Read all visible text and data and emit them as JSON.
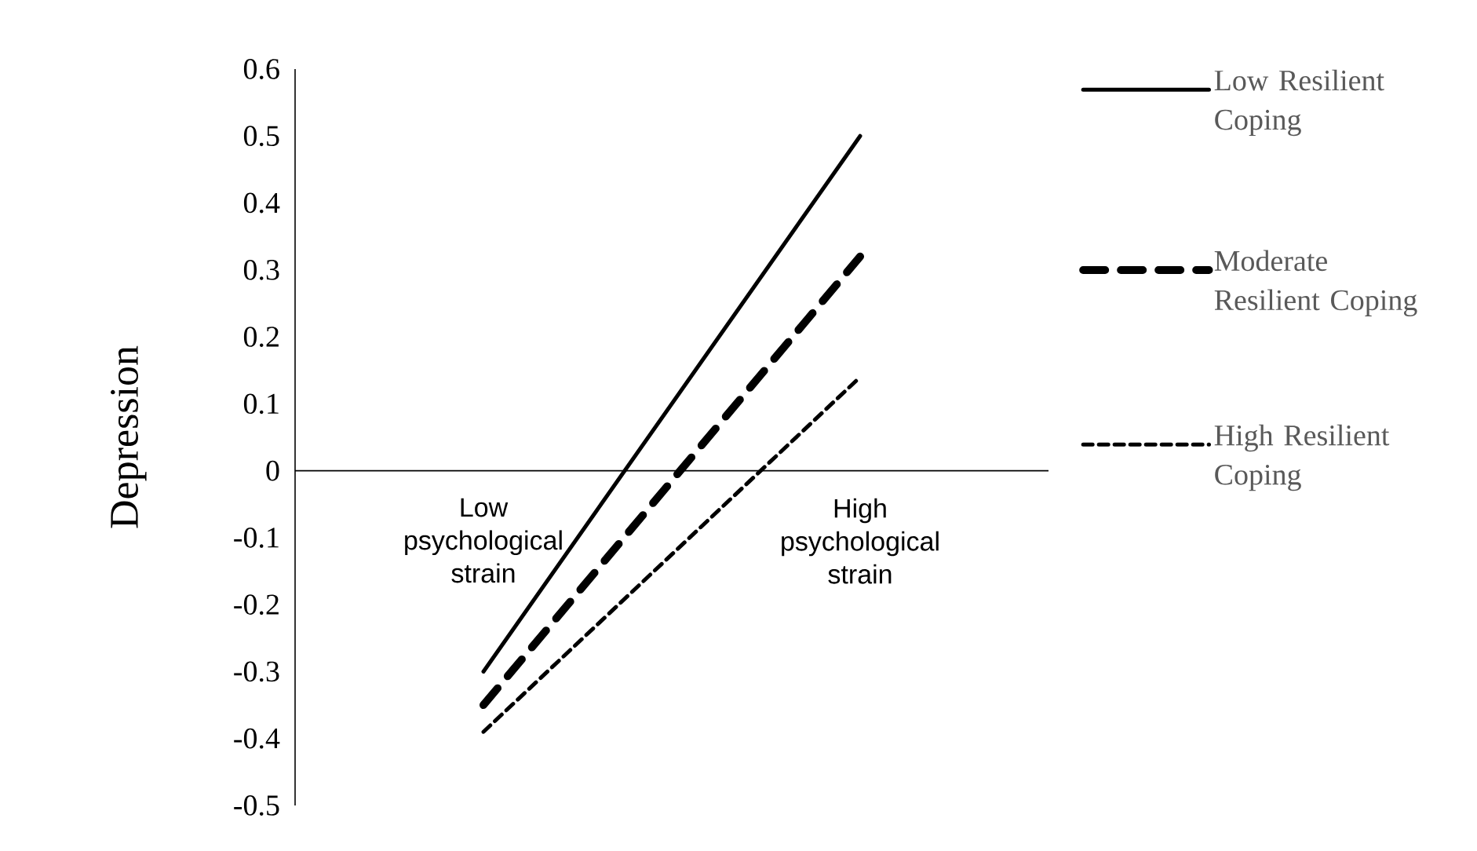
{
  "chart_data": {
    "type": "line",
    "ylabel": "Depression",
    "categories": [
      "Low psychological strain",
      "High psychological strain"
    ],
    "series": [
      {
        "name": "Low Resilient Coping",
        "color": "#000000",
        "line_style": "solid",
        "values": [
          -0.3,
          0.5
        ]
      },
      {
        "name": "Moderate Resilient Coping",
        "color": "#000000",
        "line_style": "dashed",
        "values": [
          -0.35,
          0.32
        ]
      },
      {
        "name": "High Resilient Coping",
        "color": "#000000",
        "line_style": "dotted",
        "values": [
          -0.39,
          0.14
        ]
      }
    ],
    "ylim": [
      -0.5,
      0.6
    ],
    "yticks": [
      -0.5,
      -0.4,
      -0.3,
      -0.2,
      -0.1,
      0,
      0.1,
      0.2,
      0.3,
      0.4,
      0.5,
      0.6
    ],
    "legend": "right"
  }
}
